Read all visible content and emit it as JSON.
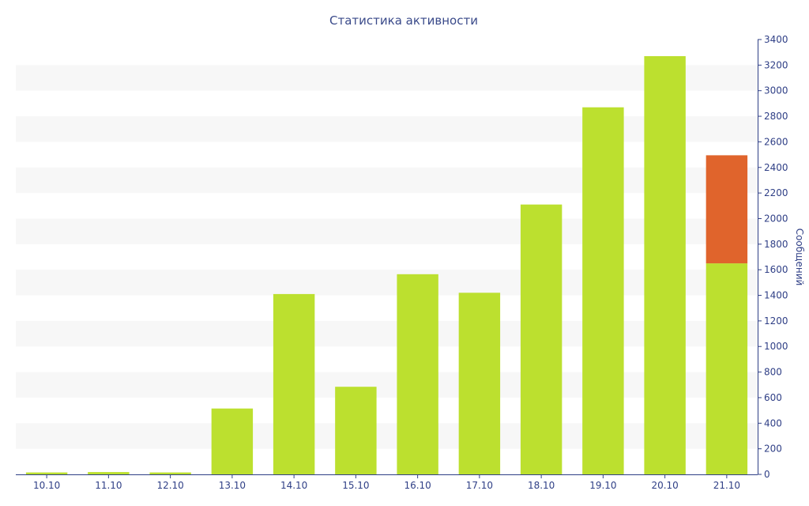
{
  "chart_data": {
    "type": "bar",
    "title": "Статистика активности",
    "xlabel": "",
    "ylabel": "Сообщений",
    "categories": [
      "10.10",
      "11.10",
      "12.10",
      "13.10",
      "14.10",
      "15.10",
      "16.10",
      "17.10",
      "18.10",
      "19.10",
      "20.10",
      "21.10"
    ],
    "series": [
      {
        "values": [
          15,
          18,
          15,
          515,
          1410,
          685,
          1565,
          1420,
          2110,
          2870,
          3270,
          1650
        ],
        "color": "#bce02f"
      },
      {
        "values": [
          0,
          0,
          0,
          0,
          0,
          0,
          0,
          0,
          0,
          0,
          0,
          845
        ],
        "color": "#e0642c"
      }
    ],
    "stacked": true,
    "ylim": [
      0,
      3400
    ],
    "yticks": [
      0,
      200,
      400,
      600,
      800,
      1000,
      1200,
      1400,
      1600,
      1800,
      2000,
      2200,
      2400,
      2600,
      2800,
      3000,
      3200,
      3400
    ],
    "y_axis_side": "right",
    "grid": "alternating horizontal bands",
    "band_color": "#f7f7f7",
    "axis_color": "#2f3f86"
  }
}
